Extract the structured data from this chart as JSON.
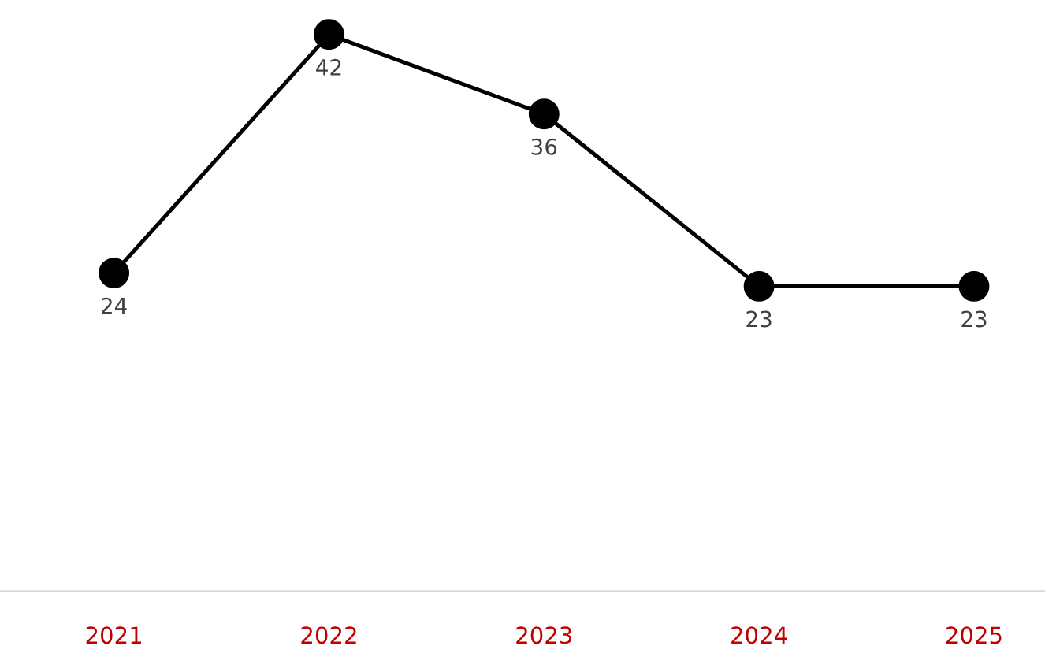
{
  "chart_data": {
    "type": "line",
    "categories": [
      "2021",
      "2022",
      "2023",
      "2024",
      "2025"
    ],
    "series": [
      {
        "color": "#000000",
        "values": [
          24,
          42,
          36,
          23,
          23
        ]
      }
    ],
    "data_labels": true,
    "marker": "circle",
    "line_style": "solid",
    "grid": false,
    "legend": false,
    "tick_labels": "x"
  }
}
